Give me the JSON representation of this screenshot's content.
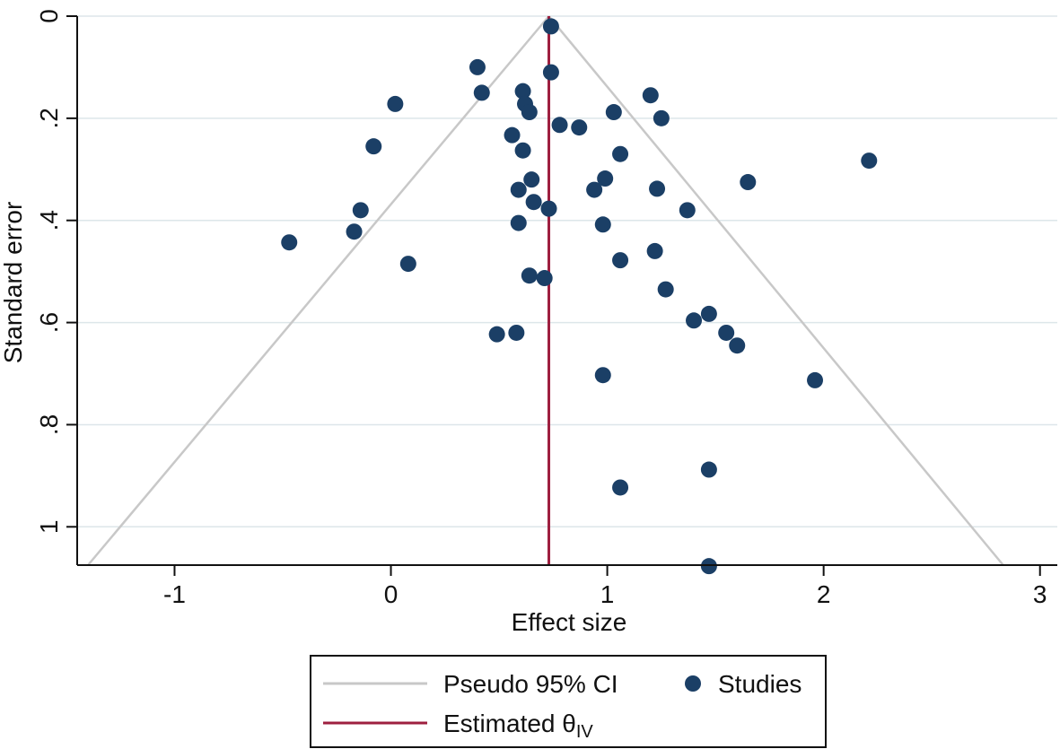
{
  "chart_data": {
    "type": "scatter",
    "title": "",
    "xlabel": "Effect size",
    "ylabel": "Standard error",
    "xlim": [
      -1.45,
      3.08
    ],
    "ylim": [
      0,
      1.075
    ],
    "y_inverted": true,
    "grid": true,
    "x_ticks": [
      -1,
      0,
      1,
      2,
      3
    ],
    "x_tick_labels": [
      "-1",
      "0",
      "1",
      "2",
      "3"
    ],
    "y_ticks": [
      0,
      0.2,
      0.4,
      0.6,
      0.8,
      1
    ],
    "y_tick_labels": [
      "0",
      ".2",
      ".4",
      ".6",
      ".8",
      "1"
    ],
    "estimate": {
      "name": "Estimated θIV",
      "x": 0.73,
      "color": "#9e1f3f"
    },
    "pseudo_ci": {
      "name": "Pseudo 95% CI",
      "apex": [
        0.73,
        0
      ],
      "base_se": 1.075,
      "left_x": -1.4,
      "right_x": 2.83,
      "color": "#c8c8c8"
    },
    "series": [
      {
        "name": "Studies",
        "color": "#1b3f66",
        "points": [
          [
            0.74,
            0.02
          ],
          [
            0.74,
            0.11
          ],
          [
            0.4,
            0.1
          ],
          [
            0.42,
            0.15
          ],
          [
            0.61,
            0.147
          ],
          [
            0.02,
            0.172
          ],
          [
            0.62,
            0.172
          ],
          [
            0.64,
            0.188
          ],
          [
            1.2,
            0.155
          ],
          [
            1.03,
            0.188
          ],
          [
            1.25,
            0.2
          ],
          [
            0.78,
            0.213
          ],
          [
            0.87,
            0.218
          ],
          [
            0.56,
            0.233
          ],
          [
            -0.08,
            0.255
          ],
          [
            0.61,
            0.263
          ],
          [
            1.06,
            0.27
          ],
          [
            2.21,
            0.283
          ],
          [
            0.65,
            0.32
          ],
          [
            0.99,
            0.318
          ],
          [
            1.65,
            0.325
          ],
          [
            0.59,
            0.34
          ],
          [
            0.94,
            0.34
          ],
          [
            1.23,
            0.338
          ],
          [
            0.66,
            0.364
          ],
          [
            0.73,
            0.377
          ],
          [
            -0.14,
            0.38
          ],
          [
            1.37,
            0.38
          ],
          [
            0.59,
            0.405
          ],
          [
            0.98,
            0.408
          ],
          [
            -0.17,
            0.422
          ],
          [
            -0.47,
            0.443
          ],
          [
            1.22,
            0.46
          ],
          [
            1.06,
            0.478
          ],
          [
            0.08,
            0.485
          ],
          [
            0.64,
            0.508
          ],
          [
            0.71,
            0.513
          ],
          [
            1.27,
            0.535
          ],
          [
            1.47,
            0.583
          ],
          [
            1.4,
            0.596
          ],
          [
            1.55,
            0.62
          ],
          [
            0.58,
            0.62
          ],
          [
            0.49,
            0.623
          ],
          [
            1.6,
            0.645
          ],
          [
            0.98,
            0.703
          ],
          [
            1.96,
            0.713
          ],
          [
            1.47,
            0.888
          ],
          [
            1.06,
            0.923
          ],
          [
            1.47,
            1.077
          ]
        ]
      }
    ]
  },
  "legend": {
    "ci_label": "Pseudo 95% CI",
    "studies_label": "Studies",
    "estimate_label": "Estimated θ",
    "estimate_subscript": "IV"
  }
}
